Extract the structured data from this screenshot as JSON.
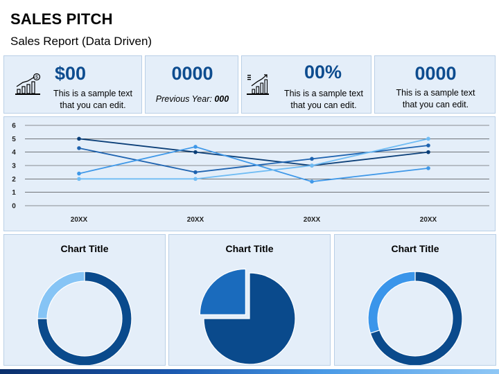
{
  "header": {
    "title": "SALES PITCH",
    "subtitle": "Sales Report (Data Driven)"
  },
  "kpis": [
    {
      "value": "$00",
      "text_line1": "This is a sample text",
      "text_line2": "that you can edit.",
      "icon": "money-growth-chart-icon"
    },
    {
      "value": "0000",
      "note_label": "Previous Year:",
      "note_value": "000"
    },
    {
      "value": "00%",
      "text_line1": "This is a sample text",
      "text_line2": "that you can edit.",
      "icon": "growth-chart-document-icon"
    },
    {
      "value": "0000",
      "text_line1": "This is a sample text",
      "text_line2": "that you can edit."
    }
  ],
  "colors": {
    "accent": "#0d4c8f",
    "panel": "#e4eef9",
    "series": [
      "#0b3f78",
      "#1e63b0",
      "#3f98e8",
      "#6fbcf4"
    ]
  },
  "chart_data": [
    {
      "type": "line",
      "categories": [
        "20XX",
        "20XX",
        "20XX",
        "20XX"
      ],
      "ylim": [
        0,
        6
      ],
      "yticks": [
        0,
        1,
        2,
        3,
        4,
        5,
        6
      ],
      "grid": true,
      "series": [
        {
          "values": [
            5.0,
            4.0,
            3.0,
            4.0
          ],
          "color": "#0b3f78"
        },
        {
          "values": [
            4.3,
            2.5,
            3.5,
            4.5
          ],
          "color": "#1e63b0"
        },
        {
          "values": [
            2.4,
            4.4,
            1.8,
            2.8
          ],
          "color": "#3f98e8"
        },
        {
          "values": [
            2.0,
            2.0,
            3.0,
            5.0
          ],
          "color": "#6fbcf4"
        }
      ]
    },
    {
      "type": "pie",
      "style": "donut",
      "title": "Chart Title",
      "values": [
        75,
        25
      ],
      "colors": [
        "#0a4a8c",
        "#86c4f5"
      ]
    },
    {
      "type": "pie",
      "title": "Chart Title",
      "values": [
        75,
        25
      ],
      "colors": [
        "#0a4a8c",
        "#1a6bbd"
      ],
      "exploded": [
        false,
        true
      ]
    },
    {
      "type": "pie",
      "style": "donut",
      "title": "Chart Title",
      "values": [
        70,
        30
      ],
      "colors": [
        "#0a4a8c",
        "#3a95ea"
      ]
    }
  ]
}
